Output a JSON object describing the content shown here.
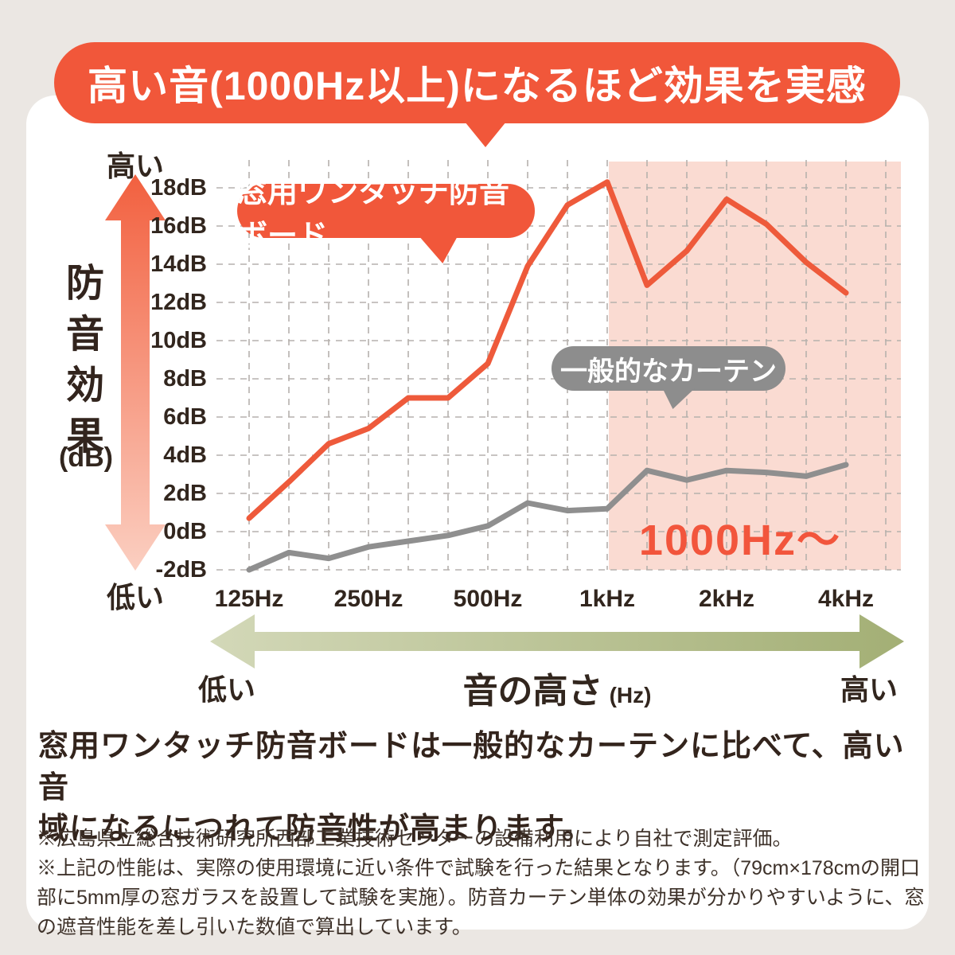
{
  "banner": {
    "text": "高い音(1000Hz以上)になるほど効果を実感"
  },
  "axes": {
    "y_title": "防音効果",
    "y_unit": "(dB)",
    "y_high_label": "高い",
    "y_low_label": "低い",
    "x_caption": "音の高さ",
    "x_caption_unit": "(Hz)",
    "x_low_label": "低い",
    "x_high_label": "高い"
  },
  "series_labels": {
    "board": "窓用ワンタッチ防音ボード",
    "curtain": "一般的なカーテン"
  },
  "chart_data": {
    "type": "line",
    "title": "高い音(1000Hz以上)になるほど効果を実感",
    "xlabel": "音の高さ (Hz)",
    "ylabel": "防音効果 (dB)",
    "ylim": [
      -2,
      18
    ],
    "grid": "dashed",
    "frequencies_hz": [
      125,
      160,
      200,
      250,
      315,
      400,
      500,
      630,
      800,
      1000,
      1250,
      1600,
      2000,
      2500,
      3150,
      4000
    ],
    "series": [
      {
        "name": "窓用ワンタッチ防音ボード",
        "color": "#ee5a3b",
        "values": [
          0.7,
          2.6,
          4.6,
          5.4,
          7.0,
          7.0,
          8.8,
          13.9,
          17.1,
          18.3,
          12.9,
          14.7,
          17.4,
          16.1,
          14.1,
          12.5
        ]
      },
      {
        "name": "一般的なカーテン",
        "color": "#8f8f8f",
        "values": [
          -2.0,
          -1.1,
          -1.4,
          -0.8,
          -0.5,
          -0.2,
          0.3,
          1.5,
          1.1,
          1.2,
          3.2,
          2.7,
          3.2,
          3.1,
          2.9,
          3.5
        ]
      }
    ],
    "y_ticks": [
      {
        "value": 18,
        "label": "18dB"
      },
      {
        "value": 16,
        "label": "16dB"
      },
      {
        "value": 14,
        "label": "14dB"
      },
      {
        "value": 12,
        "label": "12dB"
      },
      {
        "value": 10,
        "label": "10dB"
      },
      {
        "value": 8,
        "label": "8dB"
      },
      {
        "value": 6,
        "label": "6dB"
      },
      {
        "value": 4,
        "label": "4dB"
      },
      {
        "value": 2,
        "label": "2dB"
      },
      {
        "value": 0,
        "label": "0dB"
      },
      {
        "value": -2,
        "label": "-2dB"
      }
    ],
    "x_ticks": [
      {
        "band": 0,
        "label": "125Hz"
      },
      {
        "band": 3,
        "label": "250Hz"
      },
      {
        "band": 6,
        "label": "500Hz"
      },
      {
        "band": 9,
        "label": "1kHz"
      },
      {
        "band": 12,
        "label": "2kHz"
      },
      {
        "band": 15,
        "label": "4kHz"
      }
    ],
    "highlight": {
      "from_band": 9,
      "label": "1000Hz〜",
      "color": "#fadbd2"
    },
    "legend_position": "annotated-bubbles"
  },
  "main_text": {
    "line1": "窓用ワンタッチ防音ボードは一般的なカーテンに比べて、高い音",
    "line2": "域になるにつれて防音性が高まります。"
  },
  "footnotes": {
    "note1": "※広島県立総合技術研究所西部工業技術センターの設備利用により自社で測定評価。",
    "note2": "※上記の性能は、実際の使用環境に近い条件で試験を行った結果となります。（79cm×178cmの開口部に5mm厚の窓ガラスを設置して試験を実施）。防音カーテン単体の効果が分かりやすいように、窓の遮音性能を差し引いた数値で算出しています。"
  },
  "colors": {
    "page_background": "#ebe7e3",
    "card_background": "#ffffff",
    "accent_orange": "#f1573a",
    "line_orange": "#ee5a3b",
    "line_gray": "#8f8f8f",
    "highlight_pink": "#fadbd2",
    "grid_gray": "#b6b1ad",
    "text_dark": "#32261e",
    "green_arrow_light": "#d3d8b8",
    "green_arrow_dark": "#a3af75",
    "vertical_arrow_top": "#f2603f",
    "vertical_arrow_bottom": "#fbcfc1"
  }
}
